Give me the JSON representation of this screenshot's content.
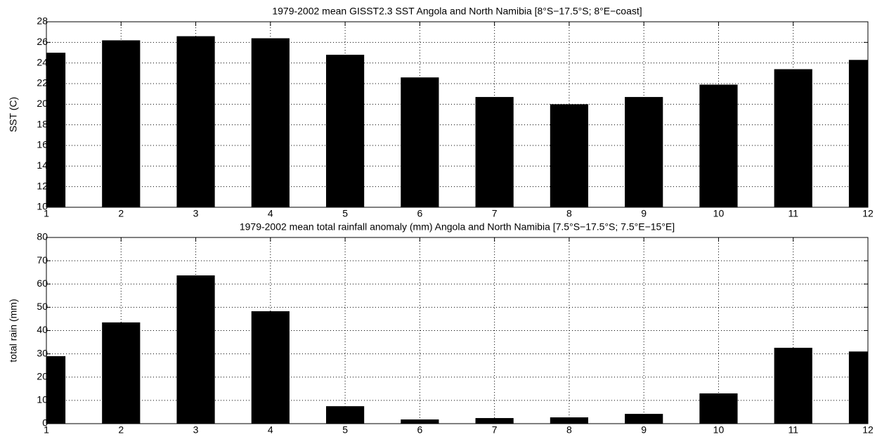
{
  "chart_data": [
    {
      "type": "bar",
      "title": "1979-2002 mean  GISST2.3 SST Angola and North Namibia [8°S−17.5°S; 8°E−coast]",
      "ylabel": "SST (C)",
      "x": [
        1,
        2,
        3,
        4,
        5,
        6,
        7,
        8,
        9,
        10,
        11,
        12
      ],
      "values": [
        25,
        26.2,
        26.6,
        26.4,
        24.8,
        22.6,
        20.7,
        20.0,
        20.7,
        21.9,
        23.4,
        24.3
      ],
      "color": "#000000",
      "xlim": [
        1,
        12
      ],
      "xticks": [
        1,
        2,
        3,
        4,
        5,
        6,
        7,
        8,
        9,
        10,
        11,
        12
      ],
      "ylim": [
        10,
        28
      ],
      "yticks": [
        10,
        12,
        14,
        16,
        18,
        20,
        22,
        24,
        26,
        28
      ],
      "grid": true
    },
    {
      "type": "bar",
      "title": "1979-2002  mean total rainfall anomaly (mm) Angola and North Namibia [7.5°S−17.5°S; 7.5°E−15°E]",
      "ylabel": "total rain (mm)",
      "x": [
        1,
        2,
        3,
        4,
        5,
        6,
        7,
        8,
        9,
        10,
        11,
        12
      ],
      "values": [
        29,
        43.5,
        63.7,
        48.3,
        7.5,
        1.8,
        2.4,
        2.7,
        4.2,
        13,
        32.6,
        31
      ],
      "color": "#000000",
      "xlim": [
        1,
        12
      ],
      "xticks": [
        1,
        2,
        3,
        4,
        5,
        6,
        7,
        8,
        9,
        10,
        11,
        12
      ],
      "ylim": [
        0,
        80
      ],
      "yticks": [
        0,
        10,
        20,
        30,
        40,
        50,
        60,
        70,
        80
      ],
      "grid": true
    }
  ]
}
